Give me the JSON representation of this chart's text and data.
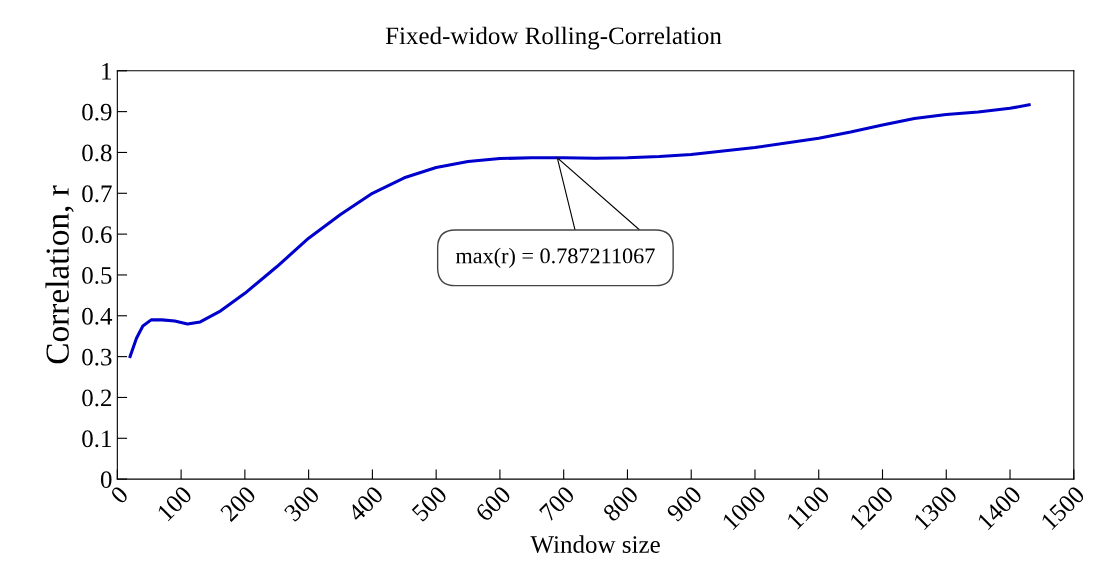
{
  "chart_data": {
    "type": "line",
    "title": "Fixed-widow Rolling-Correlation",
    "xlabel": "Window size",
    "ylabel": "Correlation, r",
    "x": [
      20,
      30,
      40,
      53,
      70,
      90,
      110,
      130,
      160,
      200,
      250,
      300,
      350,
      400,
      450,
      500,
      550,
      600,
      650,
      700,
      750,
      800,
      850,
      900,
      1000,
      1100,
      1150,
      1200,
      1250,
      1300,
      1350,
      1400,
      1430
    ],
    "series": [
      {
        "color": "#0000cc",
        "values": [
          0.3,
          0.345,
          0.375,
          0.39,
          0.39,
          0.387,
          0.38,
          0.385,
          0.41,
          0.455,
          0.52,
          0.59,
          0.648,
          0.7,
          0.738,
          0.763,
          0.778,
          0.785,
          0.787,
          0.787,
          0.786,
          0.787,
          0.79,
          0.795,
          0.812,
          0.835,
          0.85,
          0.867,
          0.883,
          0.893,
          0.899,
          0.908,
          0.917
        ]
      }
    ],
    "annotations": [
      "max(r) = 0.787211067"
    ],
    "xlim": [
      0,
      1500
    ],
    "xticks": [
      0,
      100,
      200,
      300,
      400,
      500,
      600,
      700,
      800,
      900,
      1000,
      1100,
      1200,
      1300,
      1400,
      1500
    ],
    "ylim": [
      0,
      1
    ],
    "yticks": [
      0,
      0.1,
      0.2,
      0.3,
      0.4,
      0.5,
      0.6,
      0.7,
      0.8,
      0.9,
      1
    ],
    "grid": false,
    "marker": "none",
    "line_style": "solid"
  }
}
